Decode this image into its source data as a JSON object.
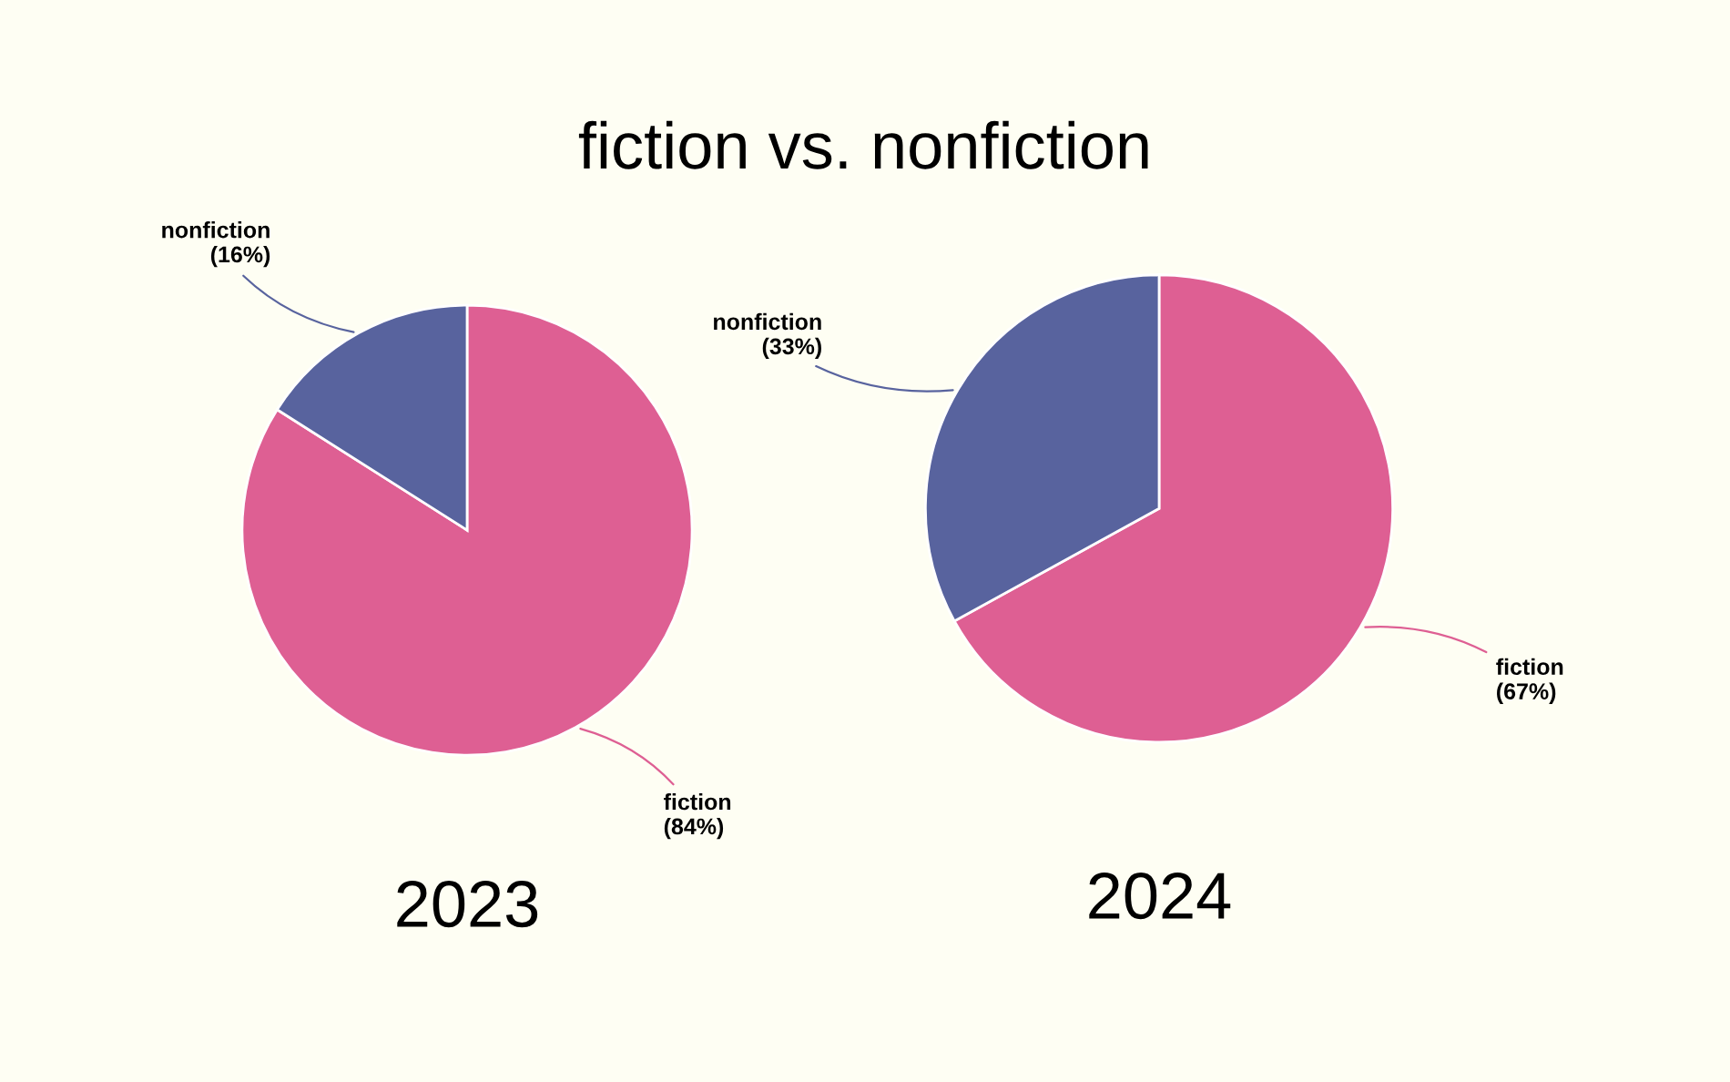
{
  "chart_data": [
    {
      "type": "pie",
      "title": "2023",
      "annotations": [
        "fiction vs. nonfiction"
      ],
      "categories": [
        "fiction",
        "nonfiction"
      ],
      "values": [
        84,
        16
      ],
      "value_labels": [
        "(84%)",
        "(16%)"
      ],
      "colors": [
        "#de5f93",
        "#58639e"
      ]
    },
    {
      "type": "pie",
      "title": "2024",
      "categories": [
        "fiction",
        "nonfiction"
      ],
      "values": [
        67,
        33
      ],
      "value_labels": [
        "(67%)",
        "(33%)"
      ],
      "colors": [
        "#de5f93",
        "#58639e"
      ]
    }
  ]
}
